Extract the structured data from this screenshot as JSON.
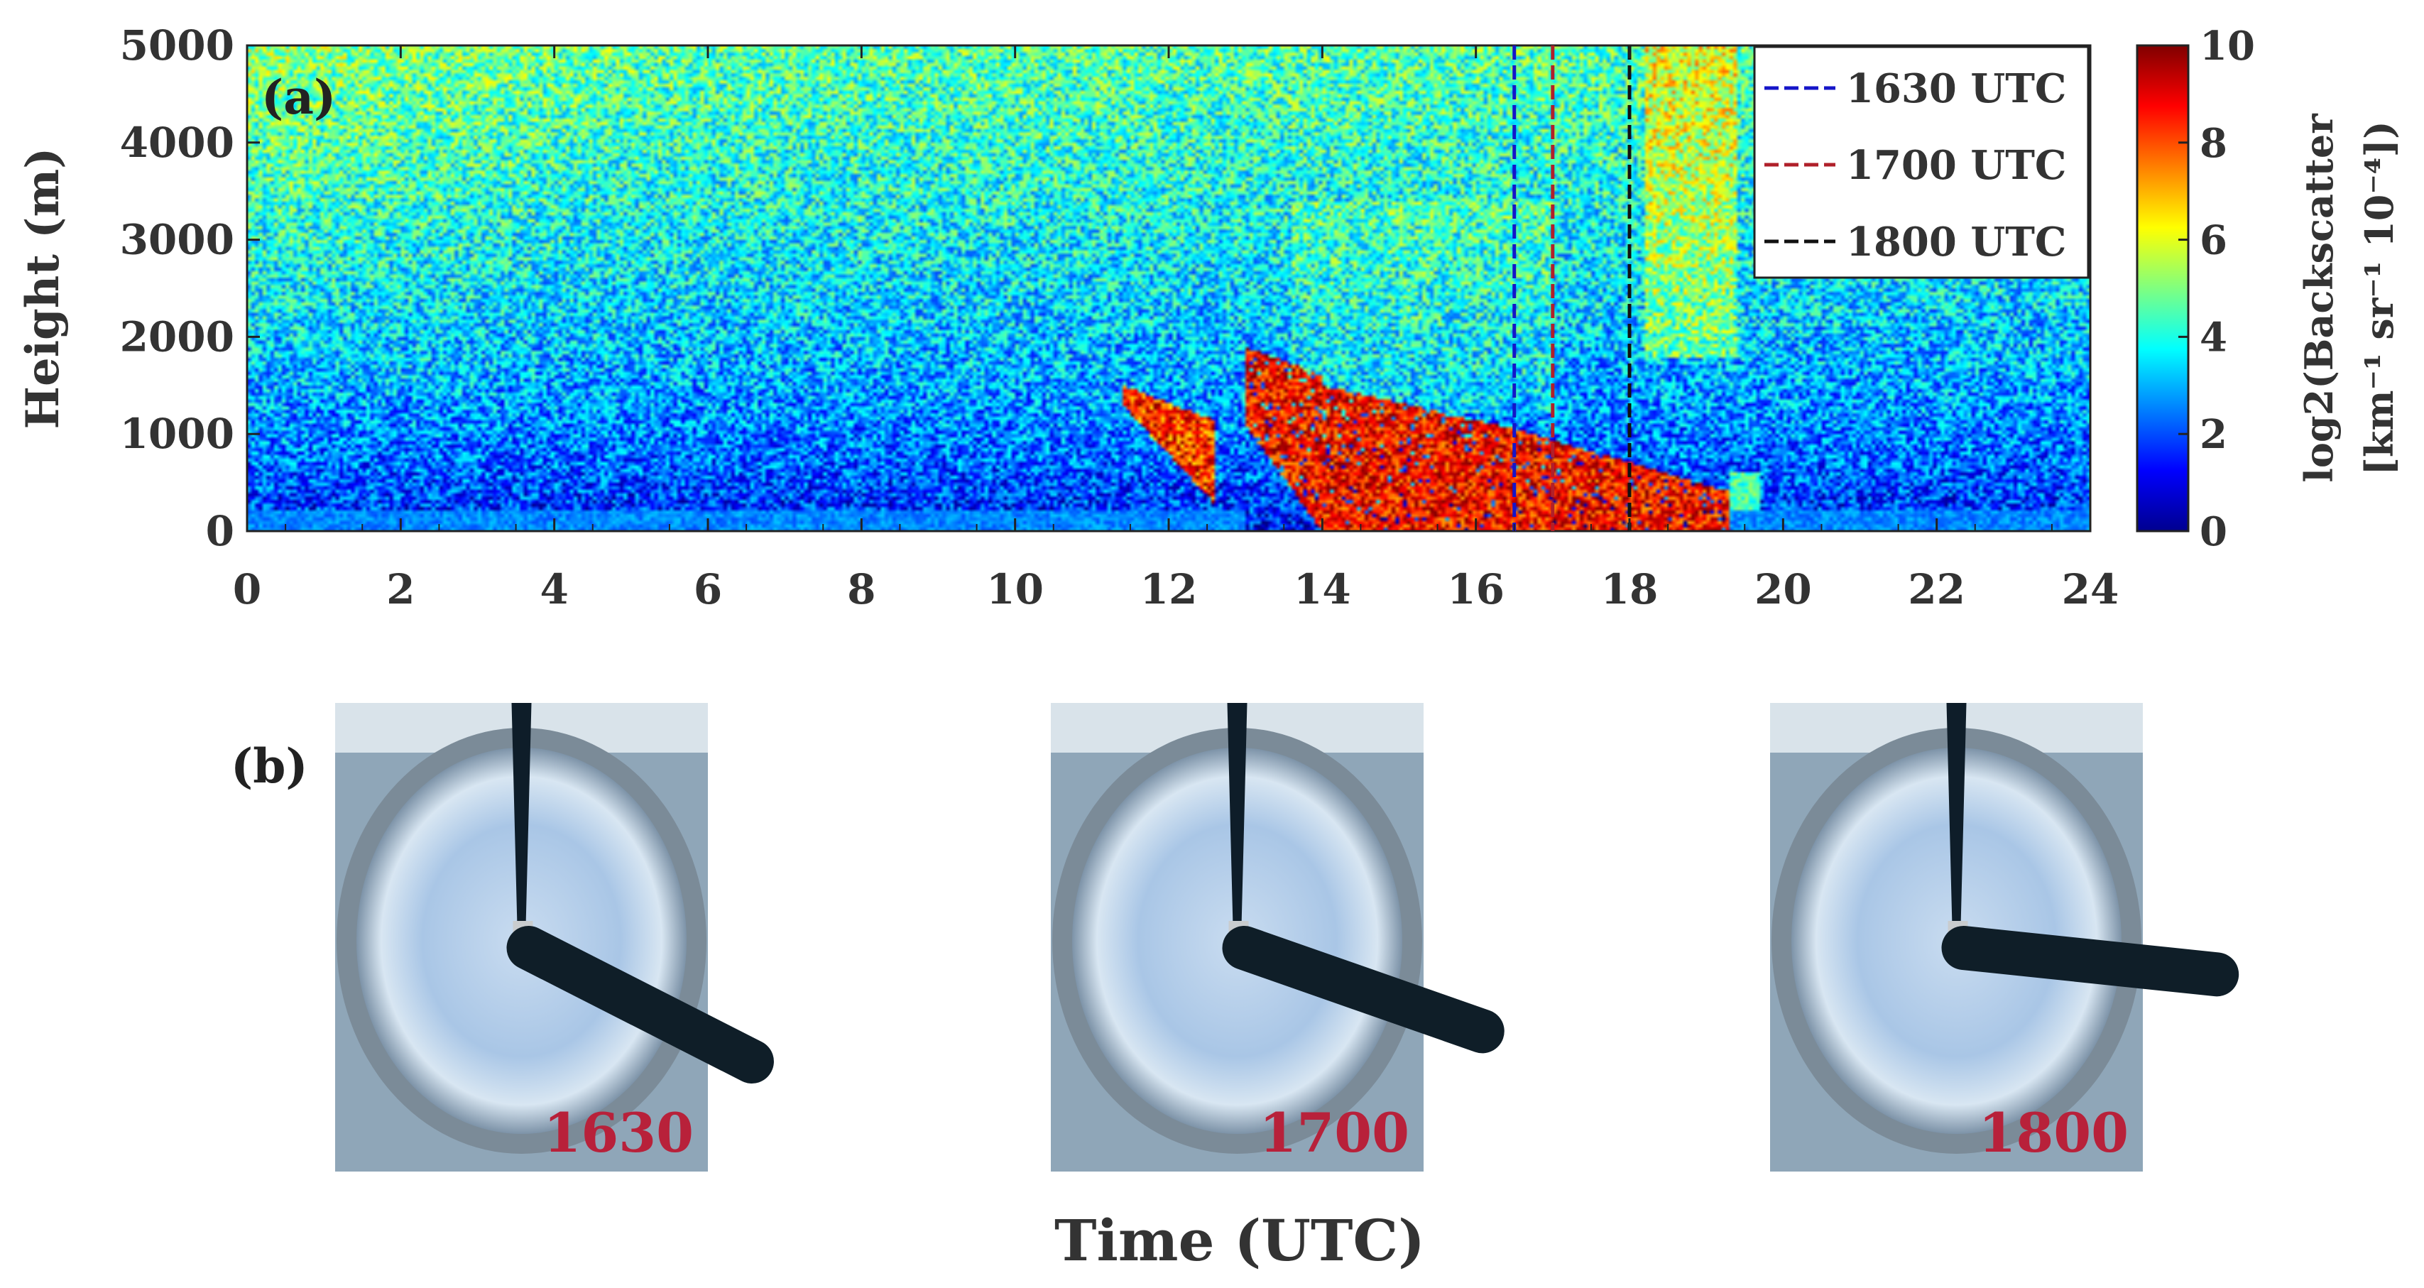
{
  "chart_data": {
    "type": "heatmap",
    "panel_a_label": "(a)",
    "panel_b_label": "(b)",
    "xlabel": "Time (UTC)",
    "ylabel": "Height (m)",
    "colorbar_label_line1": "log2(Backscatter",
    "colorbar_label_line2": "[km⁻¹ sr⁻¹ 10⁻⁴])",
    "xlim": [
      0,
      24
    ],
    "ylim": [
      0,
      5000
    ],
    "clim": [
      0,
      10
    ],
    "x_ticks": [
      "0",
      "2",
      "4",
      "6",
      "8",
      "10",
      "12",
      "14",
      "16",
      "18",
      "20",
      "22",
      "24"
    ],
    "y_ticks": [
      "0",
      "1000",
      "2000",
      "3000",
      "4000",
      "5000"
    ],
    "colorbar_ticks": [
      "0",
      "2",
      "4",
      "6",
      "8",
      "10"
    ],
    "colormap": "jet",
    "vertical_markers": [
      {
        "name": "1630 UTC",
        "time": 16.5,
        "color": "#1515c8"
      },
      {
        "name": "1700 UTC",
        "time": 17.0,
        "color": "#b0202a"
      },
      {
        "name": "1800 UTC",
        "time": 18.0,
        "color": "#111111"
      }
    ],
    "legend_position": "top-right",
    "features": [
      {
        "description_time": [
          11.4,
          12.6
        ],
        "height": [
          200,
          1500
        ],
        "value": 8.5
      },
      {
        "description_time": [
          13.0,
          19.3
        ],
        "height": [
          0,
          1900
        ],
        "value": 9
      },
      {
        "description_time": [
          18.2,
          19.4
        ],
        "height": [
          2000,
          5000
        ],
        "value": 6.5
      }
    ]
  },
  "sky_images": [
    {
      "label": "1630"
    },
    {
      "label": "1700"
    },
    {
      "label": "1800"
    }
  ]
}
